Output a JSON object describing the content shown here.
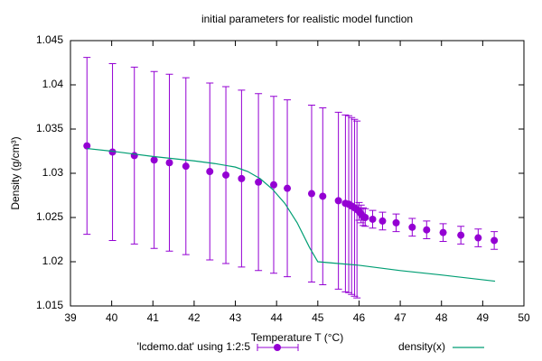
{
  "chart_data": {
    "type": "scatter",
    "title": "initial parameters for realistic model function",
    "xlabel": "Temperature T (°C)",
    "ylabel": "Density (g/cm³)",
    "xlim": [
      39,
      50
    ],
    "ylim": [
      1.015,
      1.045
    ],
    "xticks": [
      39,
      40,
      41,
      42,
      43,
      44,
      45,
      46,
      47,
      48,
      49,
      50
    ],
    "yticks": [
      1.015,
      1.02,
      1.025,
      1.03,
      1.035,
      1.04,
      1.045
    ],
    "series": [
      {
        "name": "'lcdemo.dat' using 1:2:5",
        "color": "#9400d3",
        "x": [
          39.4,
          40.02,
          40.55,
          41.03,
          41.4,
          41.8,
          42.38,
          42.77,
          43.15,
          43.56,
          43.93,
          44.26,
          44.85,
          45.12,
          45.5,
          45.67,
          45.75,
          45.82,
          45.89,
          45.95,
          46.0,
          46.05,
          46.1,
          46.15,
          46.33,
          46.57,
          46.9,
          47.29,
          47.64,
          48.04,
          48.47,
          48.89,
          49.28
        ],
        "values": [
          1.0331,
          1.0324,
          1.032,
          1.0315,
          1.0312,
          1.0308,
          1.0302,
          1.0298,
          1.0294,
          1.029,
          1.0287,
          1.0283,
          1.0277,
          1.0274,
          1.0269,
          1.0266,
          1.0265,
          1.0263,
          1.0261,
          1.0259,
          1.0257,
          1.0254,
          1.0251,
          1.025,
          1.0248,
          1.0246,
          1.0244,
          1.0239,
          1.0236,
          1.0233,
          1.023,
          1.0227,
          1.0224
        ],
        "errors": [
          0.01,
          0.01,
          0.01,
          0.01,
          0.01,
          0.01,
          0.01,
          0.01,
          0.01,
          0.01,
          0.01,
          0.01,
          0.01,
          0.01,
          0.01,
          0.01,
          0.01,
          0.01,
          0.01,
          0.01,
          0.001,
          0.001,
          0.001,
          0.001,
          0.001,
          0.001,
          0.001,
          0.001,
          0.001,
          0.001,
          0.001,
          0.001,
          0.001
        ]
      },
      {
        "name": "density(x)",
        "color": "#009e73",
        "type": "line",
        "x": [
          39.4,
          40,
          41,
          42,
          42.5,
          43,
          43.3,
          43.6,
          43.9,
          44.2,
          44.5,
          44.8,
          45,
          46,
          47,
          48,
          49.3
        ],
        "values": [
          1.0328,
          1.0325,
          1.0319,
          1.0314,
          1.0311,
          1.0307,
          1.0302,
          1.0294,
          1.0282,
          1.0266,
          1.0244,
          1.0216,
          1.02,
          1.0196,
          1.019,
          1.0185,
          1.0178
        ]
      }
    ]
  }
}
